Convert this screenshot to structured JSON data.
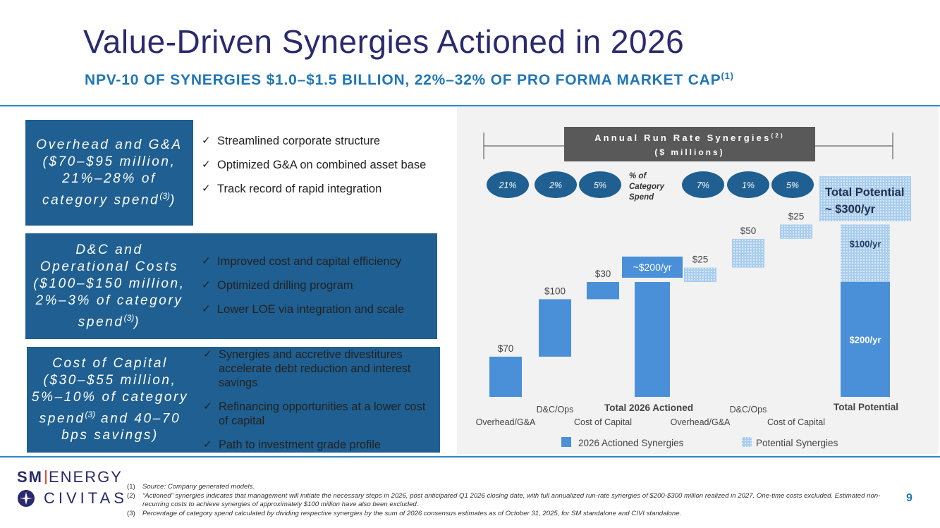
{
  "title": "Value-Driven Synergies Actioned in 2026",
  "subtitle": "NPV-10 OF SYNERGIES $1.0–$1.5 BILLION, 22%–32% OF PRO FORMA MARKET CAP",
  "subtitle_sup": "(1)",
  "categories": [
    {
      "label": "Overhead and G&A ($70–$95 million, 21%–28% of category spend",
      "sup": "(3)",
      "suffix": ")",
      "bullets": [
        "Streamlined corporate structure",
        "Optimized G&A on combined asset base",
        "Track record of rapid integration"
      ]
    },
    {
      "label": "D&C and Operational Costs ($100–$150 million, 2%–3% of category spend",
      "sup": "(3)",
      "suffix": ")",
      "bullets": [
        "Improved cost and capital efficiency",
        "Optimized drilling program",
        "Lower LOE via integration and scale"
      ]
    },
    {
      "label": "Cost of Capital ($30–$55 million, 5%–10% of category spend",
      "sup": "(3)",
      "suffix": " and 40–70 bps savings)",
      "bullets": [
        "Synergies and accretive divestitures accelerate debt reduction and interest savings",
        "Refinancing opportunities at a lower cost of capital",
        "Path to investment grade profile"
      ]
    }
  ],
  "chart_data": {
    "type": "bar",
    "title": "Annual Run Rate Synergies",
    "title_sup": "(2)",
    "subtitle": "($ millions)",
    "pct_label": "% of Category Spend",
    "pct_actioned": [
      "21%",
      "2%",
      "5%"
    ],
    "pct_potential": [
      "7%",
      "1%",
      "5%"
    ],
    "categories": [
      "Overhead/G&A",
      "D&C/Ops",
      "Cost of Capital",
      "Total 2026 Actioned",
      "Overhead/G&A",
      "D&C/Ops",
      "Cost of Capital",
      "Total Potential"
    ],
    "values": [
      70,
      100,
      30,
      200,
      25,
      50,
      25,
      300
    ],
    "value_labels": [
      "$70",
      "$100",
      "$30",
      "~$200/yr",
      "$25",
      "$50",
      "$25",
      ""
    ],
    "series_kind": [
      "actioned",
      "actioned",
      "actioned",
      "actioned_total",
      "potential",
      "potential",
      "potential",
      "total"
    ],
    "total_potential_label": "Total Potential ~ $300/yr",
    "total_split_labels": [
      "$200/yr",
      "$100/yr"
    ],
    "legend": [
      "2026 Actioned Synergies",
      "Potential Synergies"
    ],
    "colors": {
      "actioned": "#4a90d9",
      "potential": "#a9cdee",
      "ellipse": "#1f5f91",
      "title_box": "#595959"
    },
    "ylim": [
      0,
      330
    ]
  },
  "footnotes": [
    {
      "n": "(1)",
      "text": "Source: Company generated models."
    },
    {
      "n": "(2)",
      "text": "“Actioned” synergies indicates that management will initiate the necessary steps in 2026, post anticipated Q1 2026 closing date, with full annualized run-rate synergies of $200-$300 million realized in 2027. One-time costs excluded. Estimated non-recurring costs to achieve synergies of approximately $100 million have also been excluded."
    },
    {
      "n": "(3)",
      "text": "Percentage of category spend calculated by dividing respective synergies by the sum of 2026 consensus estimates as of October 31, 2025, for SM standalone and CIVI standalone."
    }
  ],
  "page_number": "9",
  "logo": {
    "sm_bold": "SM",
    "sm_rest": "ENERGY",
    "civitas": "CIVITAS"
  }
}
